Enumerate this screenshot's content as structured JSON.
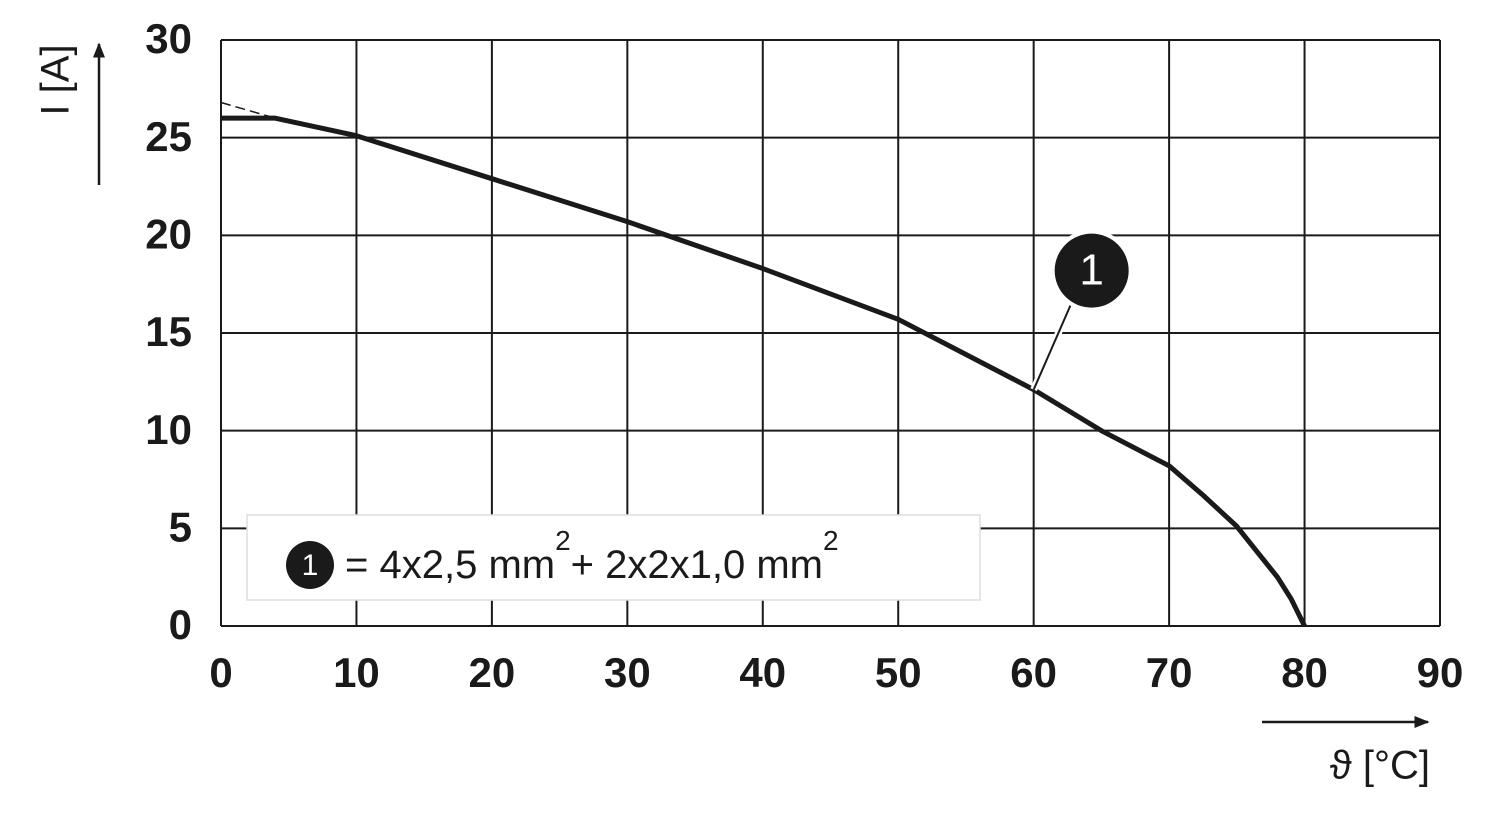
{
  "chart_data": {
    "type": "line",
    "xlabel": "ϑ [°C]",
    "ylabel": "I [A]",
    "xlim": [
      0,
      90
    ],
    "ylim": [
      0,
      30
    ],
    "xticks": [
      0,
      10,
      20,
      30,
      40,
      50,
      60,
      70,
      80,
      90
    ],
    "yticks": [
      0,
      5,
      10,
      15,
      20,
      25,
      30
    ],
    "grid": true,
    "series": [
      {
        "color": "#1a1a1a",
        "line_style": "solid",
        "x": [
          0,
          4,
          10,
          20,
          30,
          40,
          50,
          60,
          65,
          70,
          72.5,
          75,
          78,
          79,
          80
        ],
        "values": [
          26,
          26,
          25.1,
          22.9,
          20.7,
          18.3,
          15.7,
          12.1,
          10.0,
          8.2,
          6.7,
          5.1,
          2.5,
          1.4,
          0
        ]
      },
      {
        "color": "#1a1a1a",
        "line_style": "dashed",
        "x": [
          0,
          4
        ],
        "values": [
          26.8,
          26
        ]
      }
    ],
    "callout": {
      "label": "1",
      "x": 60,
      "y": 12.1
    },
    "note": {
      "marker": "1",
      "text1": "= 4x2,5 mm",
      "sup1": "2",
      "text2": "+ 2x2x1,0 mm",
      "sup2": "2"
    }
  }
}
